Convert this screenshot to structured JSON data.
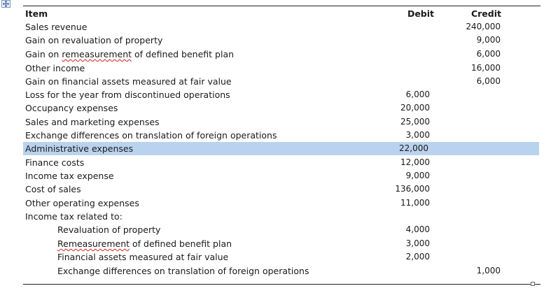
{
  "table": {
    "headers": {
      "item": "Item",
      "debit": "Debit",
      "credit": "Credit"
    },
    "rows": [
      {
        "item": "Sales revenue",
        "debit": "",
        "credit": "240,000"
      },
      {
        "item": "Gain on revaluation of property",
        "debit": "",
        "credit": "9,000"
      },
      {
        "item_pre": "Gain on ",
        "item_misspelled": "remeasurement",
        "item_post": " of defined benefit plan",
        "debit": "",
        "credit": "6,000"
      },
      {
        "item": "Other income",
        "debit": "",
        "credit": "16,000"
      },
      {
        "item": "Gain on financial assets measured at fair value",
        "debit": "",
        "credit": "6,000"
      },
      {
        "item": "Loss for the year from discontinued operations",
        "debit": "6,000",
        "credit": ""
      },
      {
        "item": "Occupancy expenses",
        "debit": "20,000",
        "credit": ""
      },
      {
        "item": "Sales and marketing expenses",
        "debit": "25,000",
        "credit": ""
      },
      {
        "item": "Exchange differences on translation of foreign operations",
        "debit": "3,000",
        "credit": ""
      },
      {
        "item": "Administrative expenses",
        "debit": "22,000",
        "credit": "",
        "selected": true
      },
      {
        "item": "Finance costs",
        "debit": "12,000",
        "credit": ""
      },
      {
        "item": "Income tax expense",
        "debit": "9,000",
        "credit": ""
      },
      {
        "item": "Cost of sales",
        "debit": "136,000",
        "credit": ""
      },
      {
        "item": "Other operating expenses",
        "debit": "11,000",
        "credit": ""
      },
      {
        "item": "Income tax related to:",
        "debit": "",
        "credit": ""
      },
      {
        "item": "Revaluation of property",
        "debit": "4,000",
        "credit": "",
        "indent": true
      },
      {
        "item_misspelled": "Remeasurement",
        "item_post": " of defined benefit plan",
        "debit": "3,000",
        "credit": "",
        "indent": true
      },
      {
        "item": "Financial assets measured at fair value",
        "debit": "2,000",
        "credit": "",
        "indent": true
      },
      {
        "item": "Exchange differences on translation of foreign operations",
        "debit": "",
        "credit": "1,000",
        "indent": true
      }
    ]
  },
  "colors": {
    "selection_highlight": "#b9d2ee",
    "spellcheck_underline": "#d02020"
  },
  "icons": {
    "table_move_handle": "four-arrows-icon",
    "table_resize_handle": "square-handle-icon"
  }
}
